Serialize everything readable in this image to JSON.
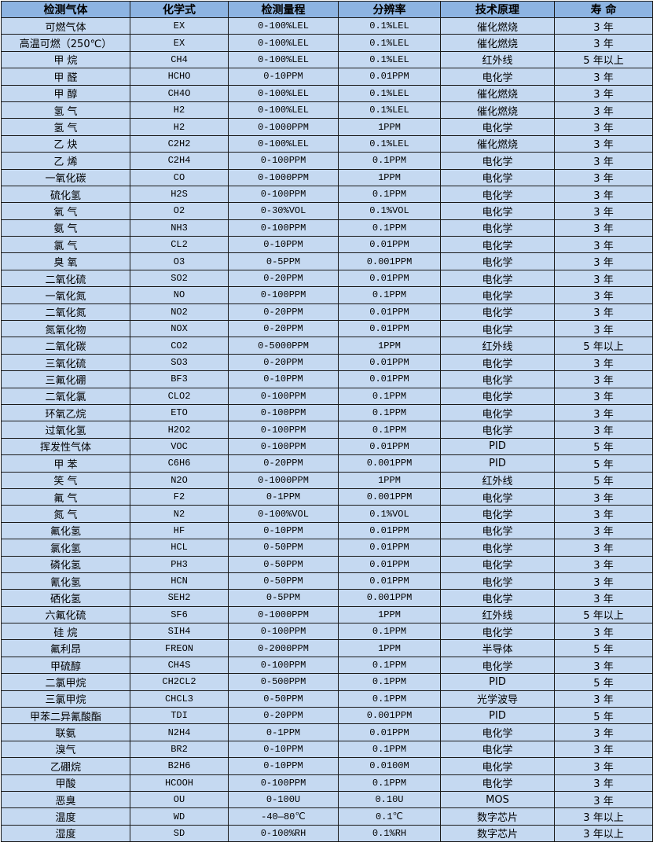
{
  "colors": {
    "header_bg": "#8db4e2",
    "row_bg": "#c5d9f1",
    "border": "#1a1a1a"
  },
  "headers": [
    "检测气体",
    "化学式",
    "检测量程",
    "分辨率",
    "技术原理",
    "寿 命"
  ],
  "rows": [
    [
      "可燃气体",
      "EX",
      "0-100%LEL",
      "0.1%LEL",
      "催化燃烧",
      "3 年"
    ],
    [
      "高温可燃（250℃）",
      "EX",
      "0-100%LEL",
      "0.1%LEL",
      "催化燃烧",
      "3 年"
    ],
    [
      "甲 烷",
      "CH4",
      "0-100%LEL",
      "0.1%LEL",
      "红外线",
      "5 年以上"
    ],
    [
      "甲 醛",
      "HCHO",
      "0-10PPM",
      "0.01PPM",
      "电化学",
      "3 年"
    ],
    [
      "甲 醇",
      "CH4O",
      "0-100%LEL",
      "0.1%LEL",
      "催化燃烧",
      "3 年"
    ],
    [
      "氢 气",
      "H2",
      "0-100%LEL",
      "0.1%LEL",
      "催化燃烧",
      "3 年"
    ],
    [
      "氢 气",
      "H2",
      "0-1000PPM",
      "1PPM",
      "电化学",
      "3 年"
    ],
    [
      "乙 炔",
      "C2H2",
      "0-100%LEL",
      "0.1%LEL",
      "催化燃烧",
      "3 年"
    ],
    [
      "乙 烯",
      "C2H4",
      "0-100PPM",
      "0.1PPM",
      "电化学",
      "3 年"
    ],
    [
      "一氧化碳",
      "CO",
      "0-1000PPM",
      "1PPM",
      "电化学",
      "3 年"
    ],
    [
      "硫化氢",
      "H2S",
      "0-100PPM",
      "0.1PPM",
      "电化学",
      "3 年"
    ],
    [
      "氧 气",
      "O2",
      "0-30%VOL",
      "0.1%VOL",
      "电化学",
      "3 年"
    ],
    [
      "氨 气",
      "NH3",
      "0-100PPM",
      "0.1PPM",
      "电化学",
      "3 年"
    ],
    [
      "氯 气",
      "CL2",
      "0-10PPM",
      "0.01PPM",
      "电化学",
      "3 年"
    ],
    [
      "臭 氧",
      "O3",
      "0-5PPM",
      "0.001PPM",
      "电化学",
      "3 年"
    ],
    [
      "二氧化硫",
      "SO2",
      "0-20PPM",
      "0.01PPM",
      "电化学",
      "3 年"
    ],
    [
      "一氧化氮",
      "NO",
      "0-100PPM",
      "0.1PPM",
      "电化学",
      "3 年"
    ],
    [
      "二氧化氮",
      "NO2",
      "0-20PPM",
      "0.01PPM",
      "电化学",
      "3 年"
    ],
    [
      "氮氧化物",
      "NOX",
      "0-20PPM",
      "0.01PPM",
      "电化学",
      "3 年"
    ],
    [
      "二氧化碳",
      "CO2",
      "0-5000PPM",
      "1PPM",
      "红外线",
      "5 年以上"
    ],
    [
      "三氧化硫",
      "SO3",
      "0-20PPM",
      "0.01PPM",
      "电化学",
      "3 年"
    ],
    [
      "三氟化硼",
      "BF3",
      "0-10PPM",
      "0.01PPM",
      "电化学",
      "3 年"
    ],
    [
      "二氧化氯",
      "CLO2",
      "0-100PPM",
      "0.1PPM",
      "电化学",
      "3 年"
    ],
    [
      "环氧乙烷",
      "ETO",
      "0-100PPM",
      "0.1PPM",
      "电化学",
      "3 年"
    ],
    [
      "过氧化氢",
      "H2O2",
      "0-100PPM",
      "0.1PPM",
      "电化学",
      "3 年"
    ],
    [
      "挥发性气体",
      "VOC",
      "0-100PPM",
      "0.01PPM",
      "PID",
      "5 年"
    ],
    [
      "甲 苯",
      "C6H6",
      "0-20PPM",
      "0.001PPM",
      "PID",
      "5 年"
    ],
    [
      "笑 气",
      "N2O",
      "0-1000PPM",
      "1PPM",
      "红外线",
      "5 年"
    ],
    [
      "氟 气",
      "F2",
      "0-1PPM",
      "0.001PPM",
      "电化学",
      "3 年"
    ],
    [
      "氮 气",
      "N2",
      "0-100%VOL",
      "0.1%VOL",
      "电化学",
      "3 年"
    ],
    [
      "氟化氢",
      "HF",
      "0-10PPM",
      "0.01PPM",
      "电化学",
      "3 年"
    ],
    [
      "氯化氢",
      "HCL",
      "0-50PPM",
      "0.01PPM",
      "电化学",
      "3 年"
    ],
    [
      "磷化氢",
      "PH3",
      "0-50PPM",
      "0.01PPM",
      "电化学",
      "3 年"
    ],
    [
      "氰化氢",
      "HCN",
      "0-50PPM",
      "0.01PPM",
      "电化学",
      "3 年"
    ],
    [
      "硒化氢",
      "SEH2",
      "0-5PPM",
      "0.001PPM",
      "电化学",
      "3 年"
    ],
    [
      "六氟化硫",
      "SF6",
      "0-1000PPM",
      "1PPM",
      "红外线",
      "5 年以上"
    ],
    [
      "硅 烷",
      "SIH4",
      "0-100PPM",
      "0.1PPM",
      "电化学",
      "3 年"
    ],
    [
      "氟利昂",
      "FREON",
      "0-2000PPM",
      "1PPM",
      "半导体",
      "5 年"
    ],
    [
      "甲硫醇",
      "CH4S",
      "0-100PPM",
      "0.1PPM",
      "电化学",
      "3 年"
    ],
    [
      "二氯甲烷",
      "CH2CL2",
      "0-500PPM",
      "0.1PPM",
      "PID",
      "5 年"
    ],
    [
      "三氯甲烷",
      "CHCL3",
      "0-50PPM",
      "0.1PPM",
      "光学波导",
      "3 年"
    ],
    [
      "甲苯二异氰酸酯",
      "TDI",
      "0-20PPM",
      "0.001PPM",
      "PID",
      "5 年"
    ],
    [
      "联氨",
      "N2H4",
      "0-1PPM",
      "0.01PPM",
      "电化学",
      "3 年"
    ],
    [
      "溴气",
      "BR2",
      "0-10PPM",
      "0.1PPM",
      "电化学",
      "3 年"
    ],
    [
      "乙硼烷",
      "B2H6",
      "0-10PPM",
      "0.0100M",
      "电化学",
      "3 年"
    ],
    [
      "甲酸",
      "HCOOH",
      "0-100PPM",
      "0.1PPM",
      "电化学",
      "3 年"
    ],
    [
      "恶臭",
      "OU",
      "0-100U",
      "0.10U",
      "MOS",
      "3 年"
    ],
    [
      "温度",
      "WD",
      "-40—80℃",
      "0.1℃",
      "数字芯片",
      "3 年以上"
    ],
    [
      "湿度",
      "SD",
      "0-100%RH",
      "0.1%RH",
      "数字芯片",
      "3 年以上"
    ]
  ]
}
